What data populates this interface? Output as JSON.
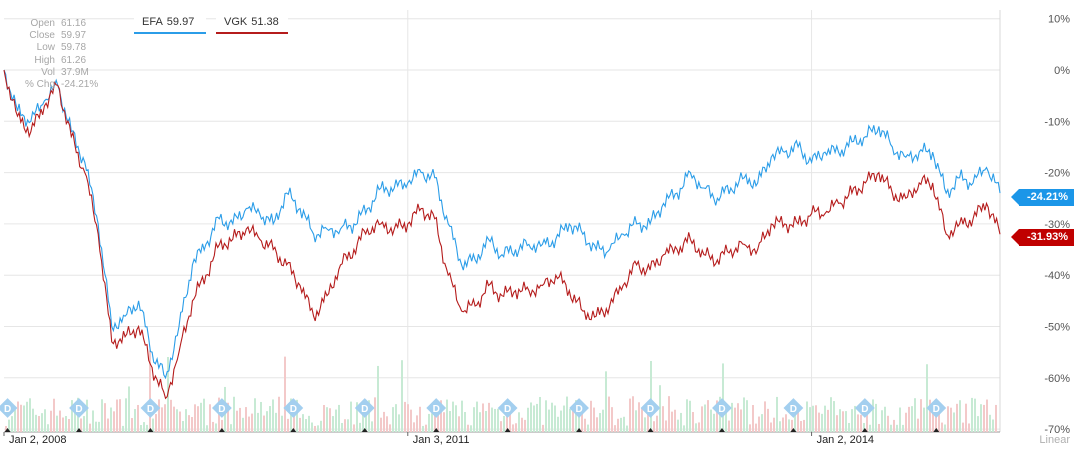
{
  "ohlc": [
    {
      "label": "Open",
      "value": "61.16"
    },
    {
      "label": "Close",
      "value": "59.97"
    },
    {
      "label": "Low",
      "value": "59.78"
    },
    {
      "label": "High",
      "value": "61.26"
    },
    {
      "label": "Vol",
      "value": "37.9M"
    },
    {
      "label": "% Chg",
      "value": "-24.21%"
    }
  ],
  "legend": [
    {
      "symbol": "EFA",
      "value": "59.97",
      "color": "#2b9de8"
    },
    {
      "symbol": "VGK",
      "value": "51.38",
      "color": "#b51c1c"
    }
  ],
  "end_tags": {
    "efa": "-24.21%",
    "vgk": "-31.93%"
  },
  "scale_mode": "Linear",
  "chart_data": {
    "type": "line",
    "y_unit": "% change",
    "ylim": [
      -72,
      12
    ],
    "y_ticks": [
      10,
      0,
      -10,
      -20,
      -30,
      -40,
      -50,
      -60,
      -70
    ],
    "y_tick_labels": [
      "10%",
      "0%",
      "-10%",
      "-20%",
      "-30%",
      "-40%",
      "-50%",
      "-60%",
      "-70%"
    ],
    "x_range": [
      2008.0,
      2015.4
    ],
    "x_ticks": [
      2008.0,
      2011.0,
      2014.0
    ],
    "x_tick_labels": [
      "Jan 2, 2008",
      "Jan 3, 2011",
      "Jan 2, 2014"
    ],
    "x_gridlines": [
      2011.0,
      2014.0
    ],
    "grid": true,
    "series": [
      {
        "name": "EFA",
        "color": "#2b9de8",
        "x": [
          2008.0,
          2008.1,
          2008.2,
          2008.3,
          2008.4,
          2008.5,
          2008.6,
          2008.7,
          2008.8,
          2008.9,
          2009.0,
          2009.1,
          2009.2,
          2009.3,
          2009.4,
          2009.5,
          2009.6,
          2009.7,
          2009.8,
          2009.9,
          2010.0,
          2010.1,
          2010.2,
          2010.3,
          2010.4,
          2010.5,
          2010.6,
          2010.7,
          2010.8,
          2010.9,
          2011.0,
          2011.1,
          2011.2,
          2011.3,
          2011.4,
          2011.5,
          2011.6,
          2011.7,
          2011.8,
          2011.9,
          2012.0,
          2012.1,
          2012.2,
          2012.3,
          2012.4,
          2012.5,
          2012.6,
          2012.7,
          2012.8,
          2012.9,
          2013.0,
          2013.1,
          2013.2,
          2013.3,
          2013.4,
          2013.5,
          2013.6,
          2013.7,
          2013.8,
          2013.9,
          2014.0,
          2014.1,
          2014.2,
          2014.3,
          2014.4,
          2014.5,
          2014.6,
          2014.7,
          2014.8,
          2014.9,
          2015.0,
          2015.1,
          2015.2,
          2015.3,
          2015.4
        ],
        "values": [
          0,
          -8,
          -10,
          -6,
          -3,
          -12,
          -18,
          -30,
          -50,
          -48,
          -45,
          -55,
          -60,
          -50,
          -38,
          -34,
          -29,
          -30,
          -27,
          -28,
          -30,
          -24,
          -27,
          -32,
          -31,
          -31,
          -30,
          -27,
          -23,
          -23,
          -22,
          -20,
          -21,
          -30,
          -38,
          -37,
          -33,
          -36,
          -35,
          -34,
          -34,
          -33,
          -30,
          -32,
          -35,
          -35,
          -32,
          -30,
          -30,
          -26,
          -24,
          -20,
          -23,
          -25,
          -23,
          -21,
          -22,
          -17,
          -16,
          -15,
          -18,
          -16,
          -16,
          -14,
          -13,
          -11,
          -15,
          -17,
          -16,
          -16,
          -24,
          -21,
          -22,
          -19,
          -24
        ]
      },
      {
        "name": "VGK",
        "color": "#b51c1c",
        "x": [
          2008.0,
          2008.1,
          2008.2,
          2008.3,
          2008.4,
          2008.5,
          2008.6,
          2008.7,
          2008.8,
          2008.9,
          2009.0,
          2009.1,
          2009.2,
          2009.3,
          2009.4,
          2009.5,
          2009.6,
          2009.7,
          2009.8,
          2009.9,
          2010.0,
          2010.1,
          2010.2,
          2010.3,
          2010.4,
          2010.5,
          2010.6,
          2010.7,
          2010.8,
          2010.9,
          2011.0,
          2011.1,
          2011.2,
          2011.3,
          2011.4,
          2011.5,
          2011.6,
          2011.7,
          2011.8,
          2011.9,
          2012.0,
          2012.1,
          2012.2,
          2012.3,
          2012.4,
          2012.5,
          2012.6,
          2012.7,
          2012.8,
          2012.9,
          2013.0,
          2013.1,
          2013.2,
          2013.3,
          2013.4,
          2013.5,
          2013.6,
          2013.7,
          2013.8,
          2013.9,
          2014.0,
          2014.1,
          2014.2,
          2014.3,
          2014.4,
          2014.5,
          2014.6,
          2014.7,
          2014.8,
          2014.9,
          2015.0,
          2015.1,
          2015.2,
          2015.3,
          2015.4
        ],
        "values": [
          0,
          -9,
          -12,
          -7,
          -3,
          -13,
          -20,
          -32,
          -53,
          -52,
          -50,
          -58,
          -64,
          -55,
          -45,
          -40,
          -34,
          -33,
          -31,
          -33,
          -35,
          -38,
          -42,
          -48,
          -44,
          -38,
          -35,
          -31,
          -30,
          -31,
          -30,
          -27,
          -29,
          -40,
          -47,
          -46,
          -42,
          -44,
          -43,
          -43,
          -42,
          -40,
          -43,
          -47,
          -48,
          -46,
          -42,
          -38,
          -39,
          -36,
          -35,
          -33,
          -36,
          -37,
          -35,
          -34,
          -35,
          -30,
          -30,
          -30,
          -28,
          -28,
          -26,
          -24,
          -22,
          -20,
          -24,
          -25,
          -22,
          -22,
          -32,
          -30,
          -29,
          -26,
          -32
        ]
      }
    ],
    "volume_markers": [
      "D",
      "D",
      "D",
      "D",
      "D",
      "D",
      "D",
      "D",
      "D",
      "D",
      "D",
      "D",
      "D",
      "D"
    ]
  }
}
